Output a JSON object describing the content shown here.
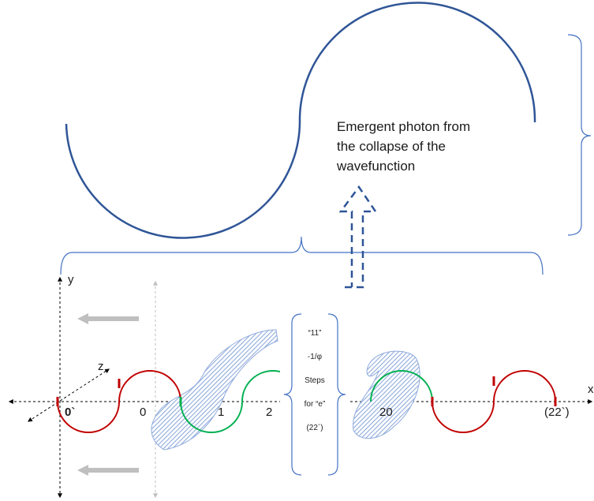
{
  "caption": {
    "line1": "Emergent photon from",
    "line2": "the collapse of the",
    "line3": "wavefunction"
  },
  "axes": {
    "y": "y",
    "z": "z",
    "x": "x"
  },
  "ticks": {
    "origin": "0`",
    "zero": "0",
    "one": "1",
    "two": "2",
    "twenty": "20",
    "end": "(22`)"
  },
  "steps_box": {
    "line1": "“11”",
    "line2": "-1/φ",
    "line3": "Steps",
    "line4": "for “e”",
    "line5": "(22`)"
  },
  "colors": {
    "wave_red": "#c00000",
    "wave_green": "#00b050",
    "photon_blue": "#2f5597",
    "brace_blue": "#4472c4",
    "hatch_blue": "#8faadc",
    "arrow_gray": "#bfbfbf"
  }
}
